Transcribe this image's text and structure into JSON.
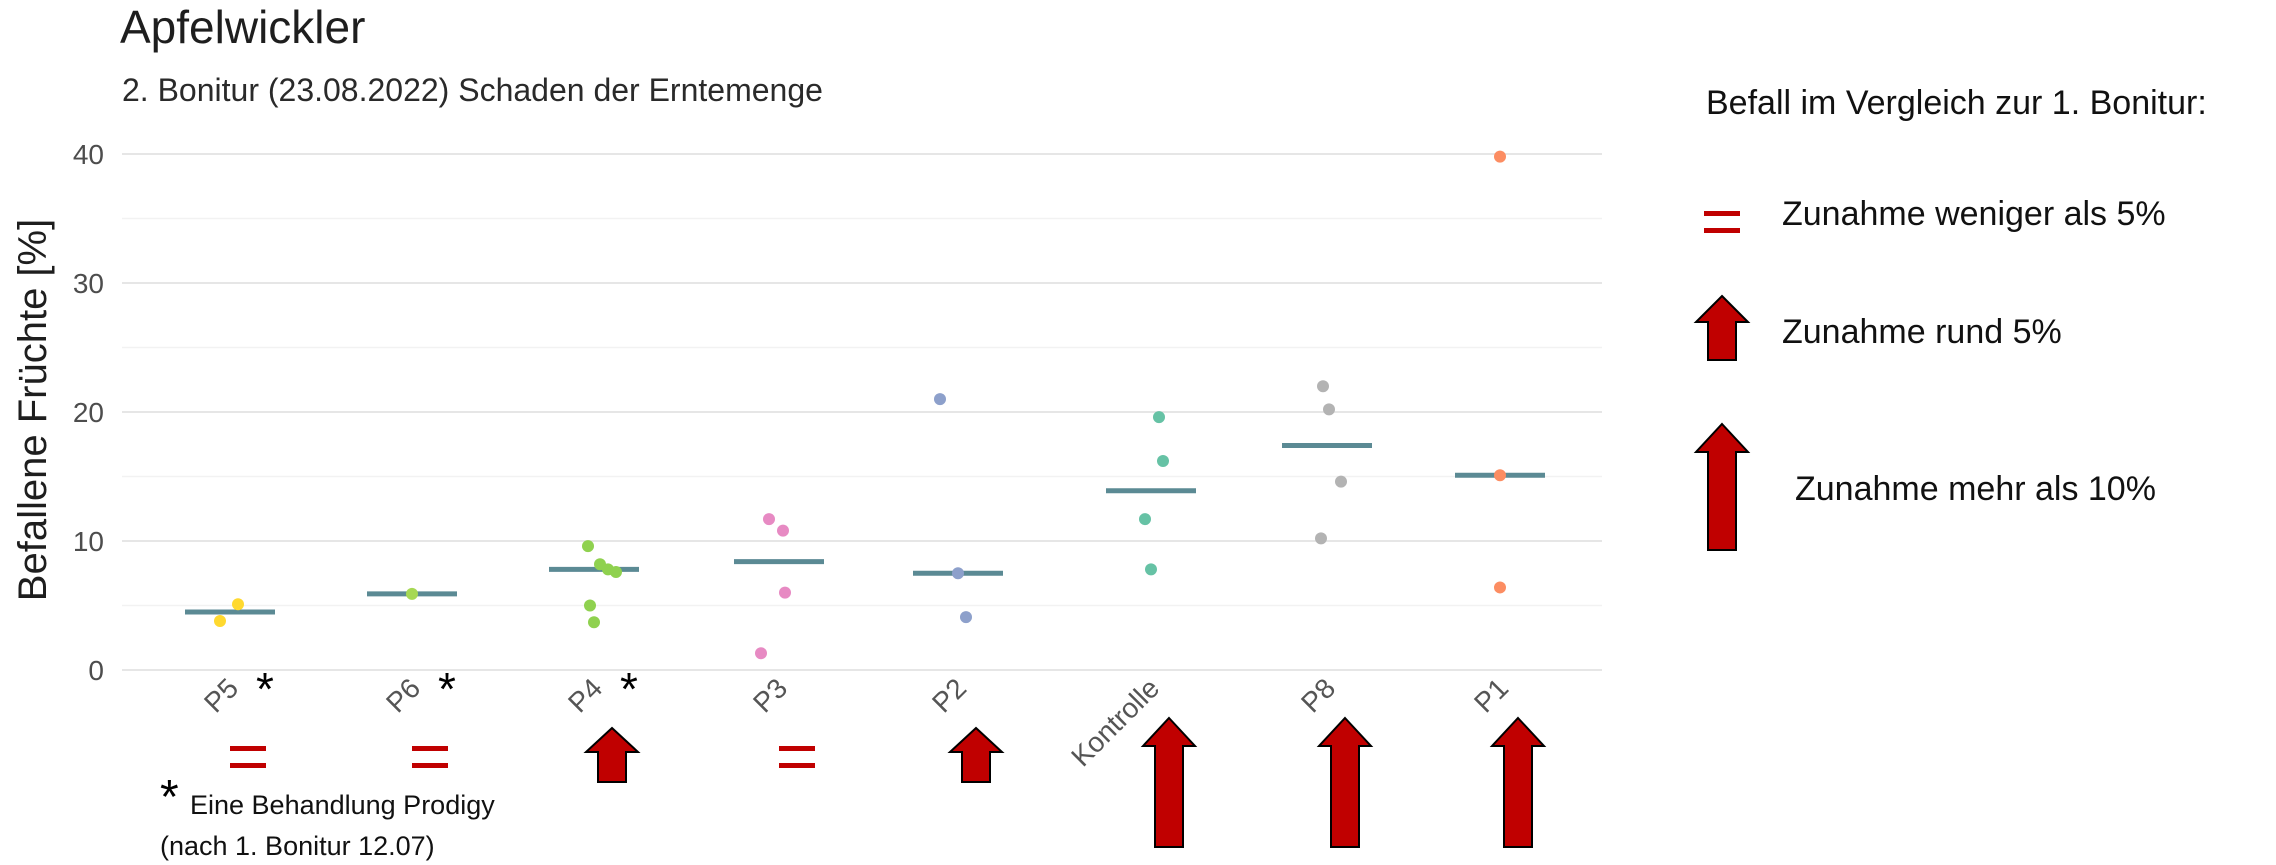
{
  "title": "Apfelwickler",
  "subtitle": "2. Bonitur (23.08.2022) Schaden der Erntemenge",
  "legend": {
    "title": "Befall im Vergleich zur 1. Bonitur:",
    "items": [
      {
        "symbol": "equals",
        "label": "Zunahme weniger als 5%"
      },
      {
        "symbol": "arrow-small",
        "label": "Zunahme rund 5%"
      },
      {
        "symbol": "arrow-large",
        "label": "Zunahme mehr als 10%"
      }
    ]
  },
  "footnote": {
    "marker": "*",
    "line1": "Eine Behandlung Prodigy",
    "line2": "(nach 1. Bonitur 12.07)"
  },
  "colors": {
    "accent_red": "#c00000",
    "median_bar": "#5b8a94",
    "grid": "#ebebeb"
  },
  "chart_data": {
    "type": "scatter",
    "ylabel": "Befallene Früchte [%]",
    "xlabel": "",
    "ylim": [
      0,
      40
    ],
    "yticks": [
      0,
      10,
      20,
      30,
      40
    ],
    "grid": true,
    "categories": [
      "P5",
      "P6",
      "P4",
      "P3",
      "P2",
      "Kontrolle",
      "P8",
      "P1"
    ],
    "series": [
      {
        "category": "P5",
        "color": "#ffd92f",
        "points": [
          3.8,
          5.1
        ],
        "median": 4.5,
        "star": true,
        "change": "equals"
      },
      {
        "category": "P6",
        "color": "#a6d854",
        "points": [
          5.9
        ],
        "median": 5.9,
        "star": true,
        "change": "equals"
      },
      {
        "category": "P4",
        "color": "#8fd14f",
        "points": [
          9.6,
          8.2,
          7.8,
          7.6,
          5.0,
          3.7
        ],
        "median": 7.8,
        "star": true,
        "change": "arrow-small"
      },
      {
        "category": "P3",
        "color": "#e78ac3",
        "points": [
          11.7,
          10.8,
          6.0,
          1.3
        ],
        "median": 8.4,
        "star": false,
        "change": "equals"
      },
      {
        "category": "P2",
        "color": "#8da0cb",
        "points": [
          21.0,
          7.5,
          4.1
        ],
        "median": 7.5,
        "star": false,
        "change": "arrow-small"
      },
      {
        "category": "Kontrolle",
        "color": "#66c2a5",
        "points": [
          19.6,
          16.2,
          11.7,
          7.8
        ],
        "median": 13.9,
        "star": false,
        "change": "arrow-large"
      },
      {
        "category": "P8",
        "color": "#b3b3b3",
        "points": [
          22.0,
          20.2,
          14.6,
          10.2
        ],
        "median": 17.4,
        "star": false,
        "change": "arrow-large"
      },
      {
        "category": "P1",
        "color": "#fc8d62",
        "points": [
          39.8,
          15.1,
          6.4
        ],
        "median": 15.1,
        "star": false,
        "change": "arrow-large"
      }
    ]
  }
}
